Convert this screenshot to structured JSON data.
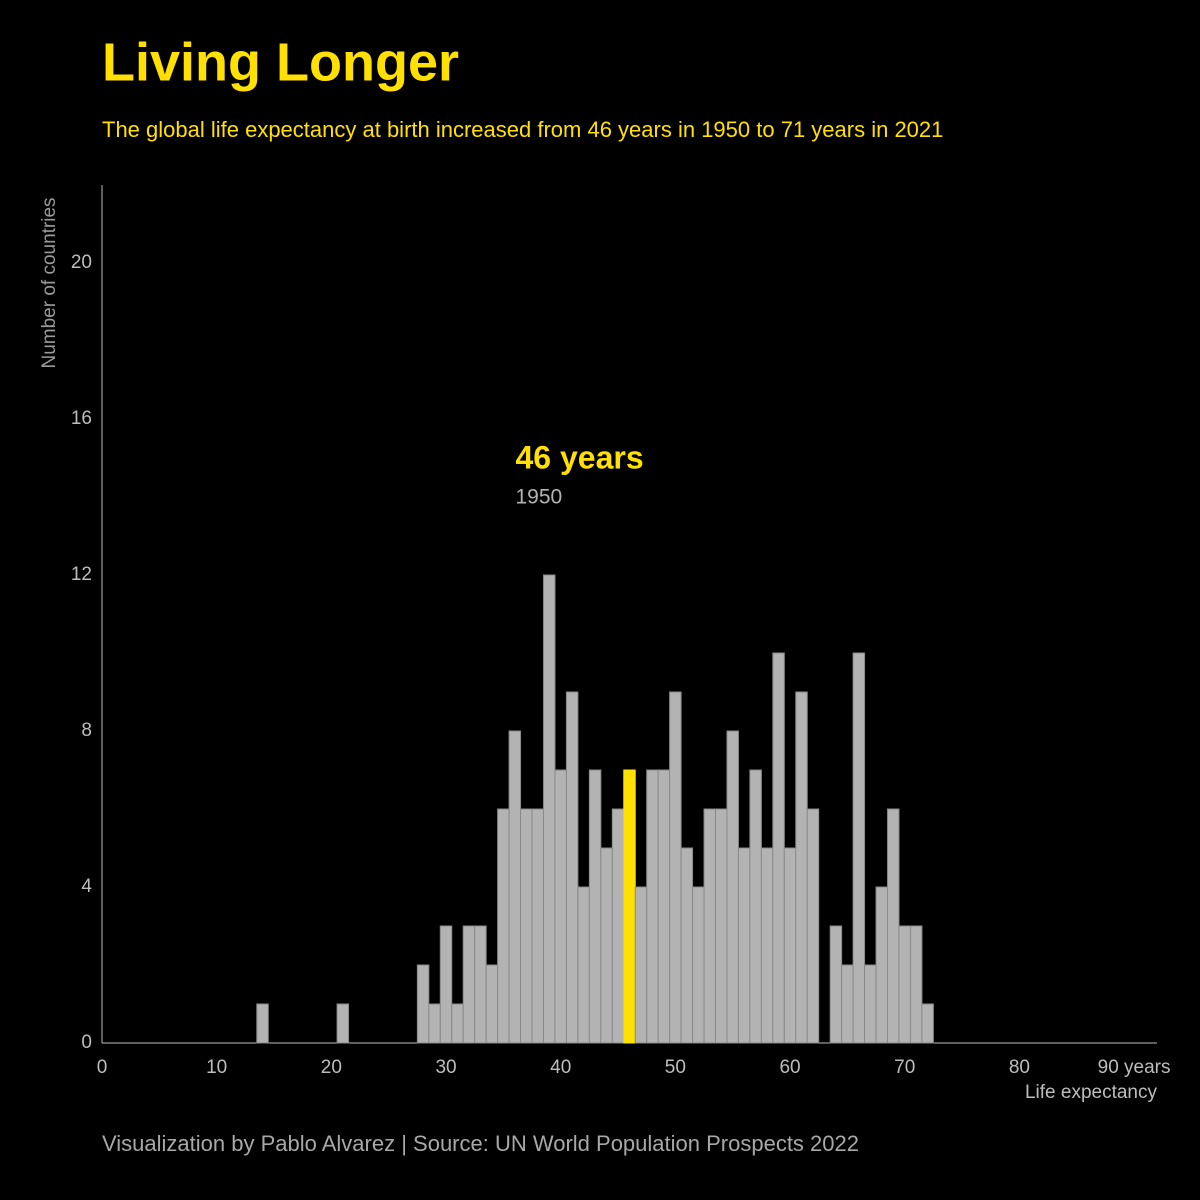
{
  "chart_data": {
    "type": "histogram",
    "title": "Living Longer",
    "subtitle": "The global life expectancy at birth increased from 46 years in 1950 to 71 years in 2021",
    "xlabel": "Life expectancy",
    "ylabel": "Number of countries",
    "source": "Visualization by Pablo Alvarez | Source: UN World Population Prospects 2022",
    "bins": [
      13.5,
      14.5,
      15.5,
      16.5,
      17.5,
      18.5,
      19.5,
      20.5,
      21.5,
      22.5,
      23.5,
      24.5,
      25.5,
      26.5,
      27.5,
      28.5,
      29.5,
      30.5,
      31.5,
      32.5,
      33.5,
      34.5,
      35.5,
      36.5,
      37.5,
      38.5,
      39.5,
      40.5,
      41.5,
      42.5,
      43.5,
      44.5,
      45.5,
      46.5,
      47.5,
      48.5,
      49.5,
      50.5,
      51.5,
      52.5,
      53.5,
      54.5,
      55.5,
      56.5,
      57.5,
      58.5,
      59.5,
      60.5,
      61.5,
      62.5,
      63.5,
      64.5,
      65.5,
      66.5,
      67.5,
      68.5,
      69.5,
      70.5,
      71.5,
      72.5
    ],
    "values": [
      1,
      0,
      0,
      0,
      0,
      0,
      0,
      1,
      0,
      0,
      0,
      0,
      0,
      0,
      2,
      1,
      3,
      1,
      3,
      3,
      2,
      6,
      8,
      6,
      6,
      12,
      7,
      9,
      4,
      7,
      5,
      6,
      7,
      4,
      7,
      7,
      9,
      5,
      4,
      6,
      6,
      8,
      5,
      7,
      5,
      10,
      5,
      9,
      6,
      0,
      3,
      2,
      10,
      2,
      4,
      6,
      3,
      3,
      1
    ],
    "color": "#b3b3b3",
    "highlight_color": "#ffe000",
    "annotation": {
      "label": "46 years",
      "sublabel": "1950",
      "x": 46
    },
    "xlim": [
      0,
      92
    ],
    "ylim": [
      0,
      22
    ],
    "xticks": [
      0,
      10,
      20,
      30,
      40,
      50,
      60,
      70,
      80,
      {
        "value": 90,
        "label": "90 years"
      }
    ],
    "yticks": [
      0,
      4,
      8,
      12,
      16,
      20
    ]
  }
}
